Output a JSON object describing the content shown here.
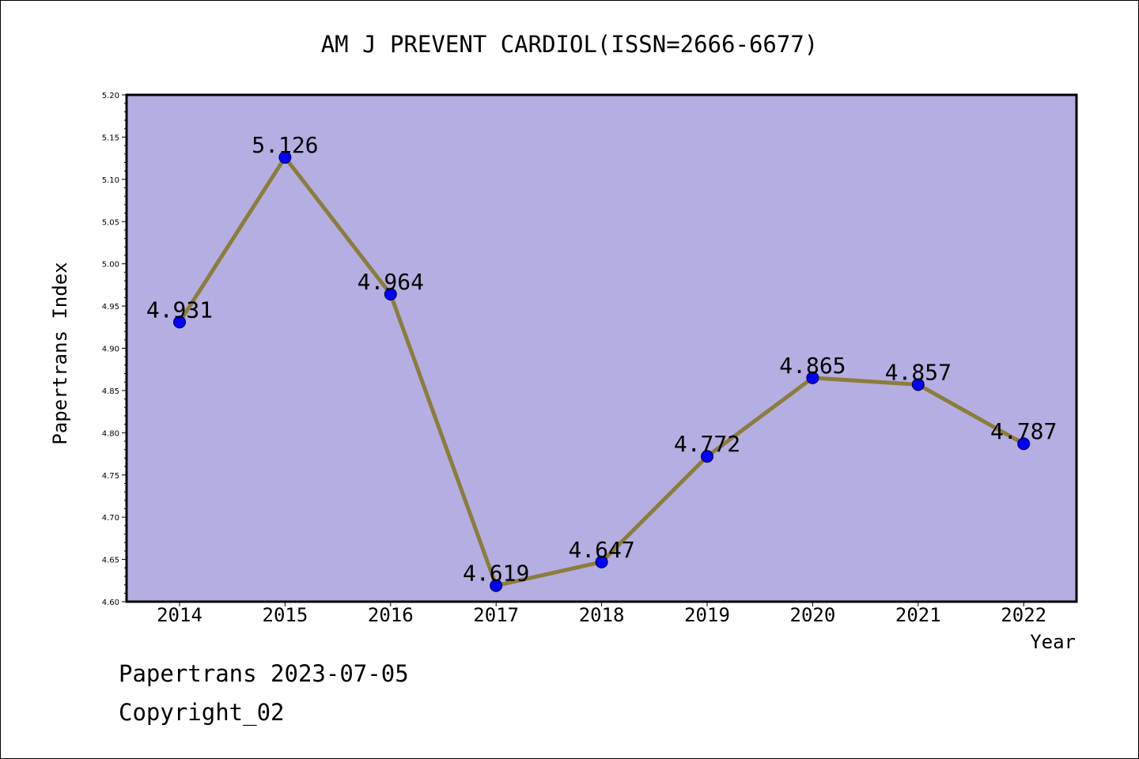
{
  "chart_data": {
    "type": "line",
    "title": "AM J PREVENT CARDIOL(ISSN=2666-6677)",
    "xlabel": "Year",
    "ylabel": "Papertrans Index",
    "categories": [
      "2014",
      "2015",
      "2016",
      "2017",
      "2018",
      "2019",
      "2020",
      "2021",
      "2022"
    ],
    "values": [
      4.931,
      5.126,
      4.964,
      4.619,
      4.647,
      4.772,
      4.865,
      4.857,
      4.787
    ],
    "data_labels": [
      "4.931",
      "5.126",
      "4.964",
      "4.619",
      "4.647",
      "4.772",
      "4.865",
      "4.857",
      "4.787"
    ],
    "ylim": [
      4.6,
      5.2
    ],
    "y_ticks": [
      "4.60",
      "4.65",
      "4.70",
      "4.75",
      "4.80",
      "4.85",
      "4.90",
      "4.95",
      "5.00",
      "5.05",
      "5.10",
      "5.15",
      "5.20"
    ],
    "grid": false,
    "legend": "none",
    "colors": {
      "plot_background": "#b4aee2",
      "line": "#8b7d3a",
      "marker": "#0000ff"
    }
  },
  "footer": {
    "line1": "Papertrans 2023-07-05",
    "line2": "Copyright_02"
  }
}
